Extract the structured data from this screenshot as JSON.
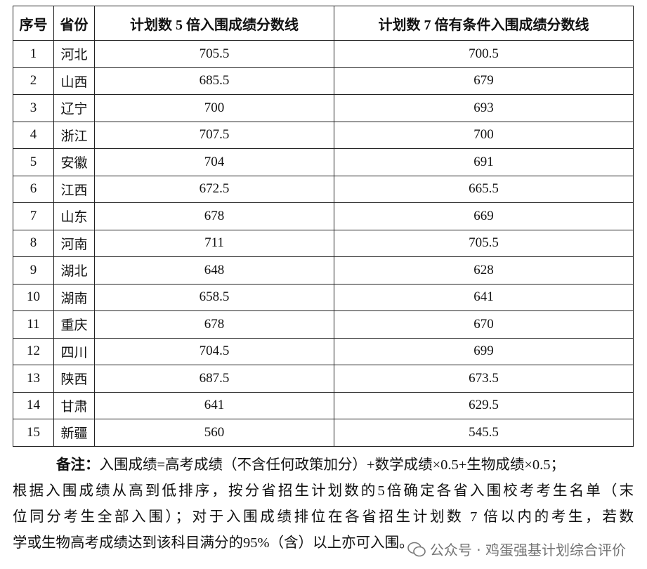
{
  "table": {
    "headers": [
      "序号",
      "省份",
      "计划数 5 倍入围成绩分数线",
      "计划数 7 倍有条件入围成绩分数线"
    ],
    "rows": [
      [
        "1",
        "河北",
        "705.5",
        "700.5"
      ],
      [
        "2",
        "山西",
        "685.5",
        "679"
      ],
      [
        "3",
        "辽宁",
        "700",
        "693"
      ],
      [
        "4",
        "浙江",
        "707.5",
        "700"
      ],
      [
        "5",
        "安徽",
        "704",
        "691"
      ],
      [
        "6",
        "江西",
        "672.5",
        "665.5"
      ],
      [
        "7",
        "山东",
        "678",
        "669"
      ],
      [
        "8",
        "河南",
        "711",
        "705.5"
      ],
      [
        "9",
        "湖北",
        "648",
        "628"
      ],
      [
        "10",
        "湖南",
        "658.5",
        "641"
      ],
      [
        "11",
        "重庆",
        "678",
        "670"
      ],
      [
        "12",
        "四川",
        "704.5",
        "699"
      ],
      [
        "13",
        "陕西",
        "687.5",
        "673.5"
      ],
      [
        "14",
        "甘肃",
        "641",
        "629.5"
      ],
      [
        "15",
        "新疆",
        "560",
        "545.5"
      ]
    ]
  },
  "note": {
    "label": "备注：",
    "lines": [
      "入围成绩=高考成绩（不含任何政策加分）+数学成绩×0.5+生物成绩×0.5；",
      "根据入围成绩从高到低排序，按分省招生计划数的5倍确定各省入围校考考生名单（末",
      "位同分考生全部入围）；对于入围成绩排位在各省招生计划数 7 倍以内的考生，若数",
      "学或生物高考成绩达到该科目满分的95%（含）以上亦可入围。"
    ]
  },
  "watermark": "公众号 · 鸡蛋强基计划综合评价"
}
